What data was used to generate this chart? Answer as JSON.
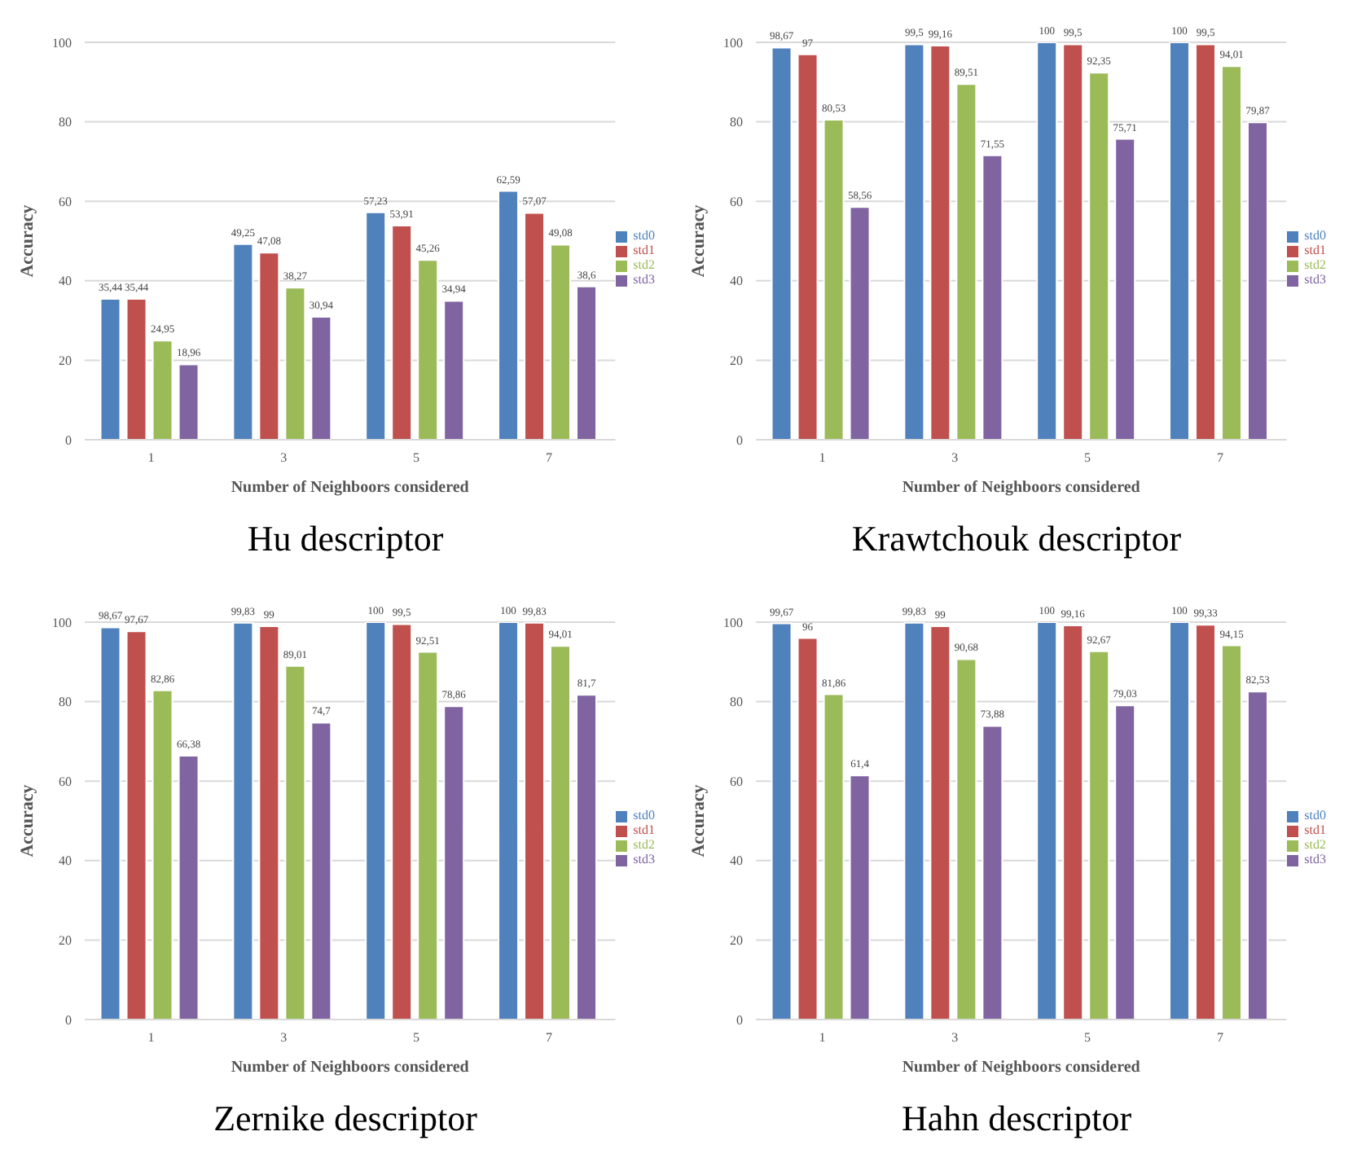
{
  "chart_data": [
    {
      "type": "bar",
      "title": "Hu descriptor",
      "xlabel": "Number of Neighboors considered",
      "ylabel": "Accuracy",
      "categories": [
        "1",
        "3",
        "5",
        "7"
      ],
      "ylim": [
        0,
        100
      ],
      "yticks": [
        0,
        20,
        40,
        60,
        80,
        100
      ],
      "grid": "y",
      "legend": "right",
      "series": [
        {
          "name": "std0",
          "color": "#4f81bd",
          "values": [
            35.44,
            49.25,
            57.23,
            62.59
          ],
          "value_labels": [
            "35,44",
            "49,25",
            "57,23",
            "62,59"
          ]
        },
        {
          "name": "std1",
          "color": "#c0504d",
          "values": [
            35.44,
            47.08,
            53.91,
            57.07
          ],
          "value_labels": [
            "35,44",
            "47,08",
            "53,91",
            "57,07"
          ]
        },
        {
          "name": "std2",
          "color": "#9bbb59",
          "values": [
            24.95,
            38.27,
            45.26,
            49.08
          ],
          "value_labels": [
            "24,95",
            "38,27",
            "45,26",
            "49,08"
          ]
        },
        {
          "name": "std3",
          "color": "#8064a2",
          "values": [
            18.96,
            30.94,
            34.94,
            38.6
          ],
          "value_labels": [
            "18,96",
            "30,94",
            "34,94",
            "38,6"
          ]
        }
      ]
    },
    {
      "type": "bar",
      "title": "Krawtchouk descriptor",
      "xlabel": "Number of Neighboors considered",
      "ylabel": "Accuracy",
      "categories": [
        "1",
        "3",
        "5",
        "7"
      ],
      "ylim": [
        0,
        100
      ],
      "yticks": [
        0,
        20,
        40,
        60,
        80,
        100
      ],
      "grid": "y",
      "legend": "right",
      "series": [
        {
          "name": "std0",
          "color": "#4f81bd",
          "values": [
            98.67,
            99.5,
            100,
            100
          ],
          "value_labels": [
            "98,67",
            "99,5",
            "100",
            "100"
          ]
        },
        {
          "name": "std1",
          "color": "#c0504d",
          "values": [
            97,
            99.16,
            99.5,
            99.5
          ],
          "value_labels": [
            "97",
            "99,16",
            "99,5",
            "99,5"
          ]
        },
        {
          "name": "std2",
          "color": "#9bbb59",
          "values": [
            80.53,
            89.51,
            92.35,
            94.01
          ],
          "value_labels": [
            "80,53",
            "89,51",
            "92,35",
            "94,01"
          ]
        },
        {
          "name": "std3",
          "color": "#8064a2",
          "values": [
            58.56,
            71.55,
            75.71,
            79.87
          ],
          "value_labels": [
            "58,56",
            "71,55",
            "75,71",
            "79,87"
          ]
        }
      ]
    },
    {
      "type": "bar",
      "title": "Zernike descriptor",
      "xlabel": "Number of Neighboors considered",
      "ylabel": "Accuracy",
      "categories": [
        "1",
        "3",
        "5",
        "7"
      ],
      "ylim": [
        0,
        100
      ],
      "yticks": [
        0,
        20,
        40,
        60,
        80,
        100
      ],
      "grid": "y",
      "legend": "right",
      "series": [
        {
          "name": "std0",
          "color": "#4f81bd",
          "values": [
            98.67,
            99.83,
            100,
            100
          ],
          "value_labels": [
            "98,67",
            "99,83",
            "100",
            "100"
          ]
        },
        {
          "name": "std1",
          "color": "#c0504d",
          "values": [
            97.67,
            99,
            99.5,
            99.83
          ],
          "value_labels": [
            "97,67",
            "99",
            "99,5",
            "99,83"
          ]
        },
        {
          "name": "std2",
          "color": "#9bbb59",
          "values": [
            82.86,
            89.01,
            92.51,
            94.01
          ],
          "value_labels": [
            "82,86",
            "89,01",
            "92,51",
            "94,01"
          ]
        },
        {
          "name": "std3",
          "color": "#8064a2",
          "values": [
            66.38,
            74.7,
            78.86,
            81.7
          ],
          "value_labels": [
            "66,38",
            "74,7",
            "78,86",
            "81,7"
          ]
        }
      ]
    },
    {
      "type": "bar",
      "title": "Hahn descriptor",
      "xlabel": "Number of Neighboors considered",
      "ylabel": "Accuracy",
      "categories": [
        "1",
        "3",
        "5",
        "7"
      ],
      "ylim": [
        0,
        100
      ],
      "yticks": [
        0,
        20,
        40,
        60,
        80,
        100
      ],
      "grid": "y",
      "legend": "right",
      "series": [
        {
          "name": "std0",
          "color": "#4f81bd",
          "values": [
            99.67,
            99.83,
            100,
            100
          ],
          "value_labels": [
            "99,67",
            "99,83",
            "100",
            "100"
          ]
        },
        {
          "name": "std1",
          "color": "#c0504d",
          "values": [
            96,
            99,
            99.16,
            99.33
          ],
          "value_labels": [
            "96",
            "99",
            "99,16",
            "99,33"
          ]
        },
        {
          "name": "std2",
          "color": "#9bbb59",
          "values": [
            81.86,
            90.68,
            92.67,
            94.15
          ],
          "value_labels": [
            "81,86",
            "90,68",
            "92,67",
            "94,15"
          ]
        },
        {
          "name": "std3",
          "color": "#8064a2",
          "values": [
            61.4,
            73.88,
            79.03,
            82.53
          ],
          "value_labels": [
            "61,4",
            "73,88",
            "79,03",
            "82,53"
          ]
        }
      ]
    }
  ]
}
